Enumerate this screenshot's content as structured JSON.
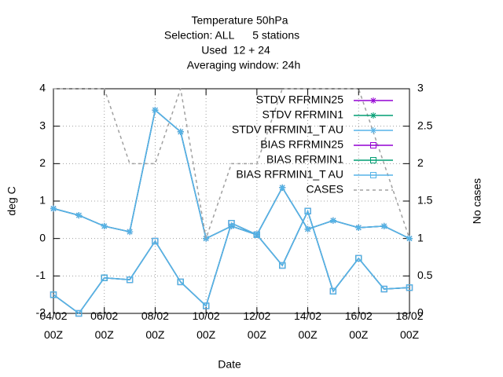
{
  "chart_data": {
    "type": "line",
    "title": "Temperature 50hPa",
    "subtitle": [
      "Selection: ALL      5 stations",
      "Used  12 + 24",
      "Averaging window: 24h"
    ],
    "xlabel": "Date",
    "ylabel": "deg C",
    "y2label": "No cases",
    "categories": [
      "04/02\n00Z",
      null,
      "06/02\n00Z",
      null,
      "08/02\n00Z",
      null,
      "10/02\n00Z",
      null,
      "12/02\n00Z",
      null,
      "14/02\n00Z",
      null,
      "16/02\n00Z",
      null,
      "18/02\n00Z"
    ],
    "ylim": [
      -2,
      4
    ],
    "yticks": [
      -2,
      -1,
      0,
      1,
      2,
      3,
      4
    ],
    "y2lim": [
      0,
      3
    ],
    "y2ticks": [
      0,
      0.5,
      1,
      1.5,
      2,
      2.5,
      3
    ],
    "grid": true,
    "legend": "top-right",
    "series": [
      {
        "name": "STDV RFRMIN25",
        "color": "#9400d3",
        "marker": "star",
        "values": [
          0.8,
          0.62,
          0.33,
          0.18,
          3.43,
          2.85,
          0.0,
          0.33,
          0.1,
          1.36,
          0.25,
          0.48,
          0.29,
          0.33,
          0.0
        ]
      },
      {
        "name": "STDV RFRMIN1",
        "color": "#009e73",
        "marker": "star",
        "values": [
          0.8,
          0.62,
          0.33,
          0.18,
          3.43,
          2.85,
          0.0,
          0.33,
          0.1,
          1.36,
          0.25,
          0.48,
          0.29,
          0.33,
          0.0
        ]
      },
      {
        "name": "STDV RFRMIN1_T AU",
        "color": "#56b4e9",
        "marker": "star",
        "values": [
          0.8,
          0.62,
          0.33,
          0.18,
          3.43,
          2.85,
          0.0,
          0.33,
          0.1,
          1.36,
          0.25,
          0.48,
          0.29,
          0.33,
          0.0
        ]
      },
      {
        "name": "BIAS RFRMIN25",
        "color": "#9400d3",
        "marker": "square",
        "values": [
          -1.5,
          -2.0,
          -1.05,
          -1.1,
          -0.07,
          -1.16,
          -1.8,
          0.41,
          0.1,
          -0.72,
          0.73,
          -1.41,
          -0.53,
          -1.35,
          -1.31
        ]
      },
      {
        "name": "BIAS RFRMIN1",
        "color": "#009e73",
        "marker": "square",
        "values": [
          -1.5,
          -2.0,
          -1.05,
          -1.1,
          -0.07,
          -1.16,
          -1.8,
          0.41,
          0.1,
          -0.72,
          0.73,
          -1.41,
          -0.53,
          -1.35,
          -1.31
        ]
      },
      {
        "name": "BIAS RFRMIN1_T AU",
        "color": "#56b4e9",
        "marker": "square",
        "values": [
          -1.5,
          -2.0,
          -1.05,
          -1.1,
          -0.07,
          -1.16,
          -1.8,
          0.41,
          0.1,
          -0.72,
          0.73,
          -1.41,
          -0.53,
          -1.35,
          -1.31
        ]
      },
      {
        "name": "CASES",
        "color": "#a0a0a0",
        "marker": "none",
        "dashed": true,
        "axis": "y2",
        "values": [
          3,
          3,
          3,
          2,
          2,
          3,
          1,
          2,
          2,
          3,
          3,
          3,
          3,
          2,
          1
        ]
      }
    ]
  }
}
